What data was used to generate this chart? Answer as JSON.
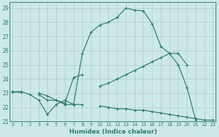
{
  "xlabel": "Humidex (Indice chaleur)",
  "ylabel": "",
  "bg_color": "#cce8e8",
  "grid_color": "#aacccc",
  "line_color": "#2d7d6e",
  "line1": {
    "x": [
      0,
      1,
      2,
      3,
      4,
      5,
      6,
      7,
      8,
      9,
      10,
      11,
      12,
      13,
      14,
      15,
      16,
      17,
      18,
      19,
      20,
      21,
      22,
      23
    ],
    "y": [
      23.1,
      23.1,
      22.9,
      22.5,
      21.5,
      22.2,
      22.5,
      22.2,
      25.8,
      27.3,
      27.8,
      28.0,
      28.35,
      29.0,
      28.85,
      28.8,
      27.9,
      26.3,
      25.8,
      25.0,
      23.4,
      21.1,
      null,
      null
    ]
  },
  "line2": {
    "x": [
      0,
      1,
      2,
      3,
      4,
      5,
      6,
      7,
      8,
      9,
      10,
      11,
      12,
      13,
      14,
      15,
      16,
      17,
      18,
      19,
      20,
      21,
      22,
      23
    ],
    "y": [
      23.1,
      23.1,
      null,
      22.9,
      22.5,
      22.5,
      22.3,
      24.1,
      24.3,
      null,
      23.5,
      23.7,
      24.0,
      24.3,
      24.6,
      24.9,
      25.2,
      25.5,
      25.8,
      25.8,
      25.0,
      null,
      null,
      null
    ]
  },
  "line3": {
    "x": [
      0,
      1,
      2,
      3,
      4,
      5,
      6,
      7,
      8,
      9,
      10,
      11,
      12,
      13,
      14,
      15,
      16,
      17,
      18,
      19,
      20,
      21,
      22,
      23
    ],
    "y": [
      23.1,
      23.1,
      null,
      23.0,
      22.8,
      22.5,
      22.2,
      22.2,
      22.2,
      null,
      22.1,
      22.0,
      21.9,
      21.9,
      21.8,
      21.8,
      21.7,
      21.6,
      21.5,
      21.4,
      21.3,
      21.2,
      21.1,
      21.1
    ]
  },
  "xlim": [
    -0.3,
    23.3
  ],
  "ylim": [
    21.0,
    29.4
  ],
  "yticks": [
    21,
    22,
    23,
    24,
    25,
    26,
    27,
    28,
    29
  ],
  "xticks": [
    0,
    1,
    2,
    3,
    4,
    5,
    6,
    7,
    8,
    9,
    10,
    11,
    12,
    13,
    14,
    15,
    16,
    17,
    18,
    19,
    20,
    21,
    22,
    23
  ]
}
